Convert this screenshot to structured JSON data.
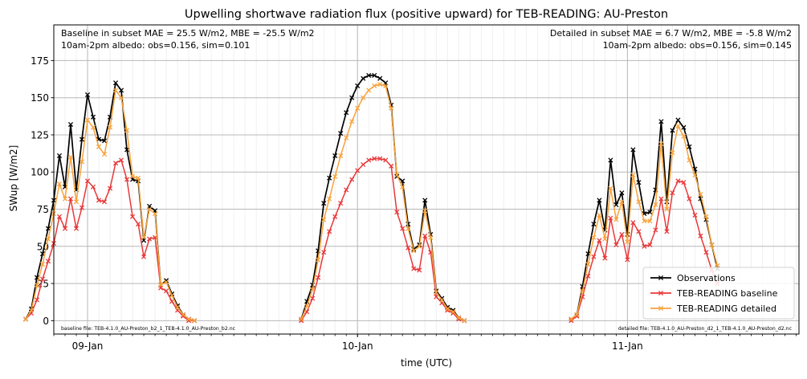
{
  "chart_data": {
    "type": "line",
    "title": "Upwelling shortwave radiation flux (positive upward) for TEB-READING: AU-Preston",
    "xlabel": "time (UTC)",
    "ylabel": "SWup [W/m2]",
    "ylim": [
      -9,
      199
    ],
    "yticks": [
      0,
      25,
      50,
      75,
      100,
      125,
      150,
      175
    ],
    "xlim": [
      -3.0,
      63.25
    ],
    "xticks": [
      {
        "label": "09-Jan",
        "hour": 0
      },
      {
        "label": "10-Jan",
        "hour": 24
      },
      {
        "label": "11-Jan",
        "hour": 48
      }
    ],
    "grid": true,
    "legend_position": "bottom-right",
    "annotations": {
      "top_left": [
        "Baseline in subset MAE = 25.5 W/m2, MBE = -25.5 W/m2",
        "10am-2pm albedo: obs=0.156, sim=0.101"
      ],
      "top_right": [
        "Detailed in subset MAE = 6.7 W/m2, MBE = -5.8 W/m2",
        "10am-2pm albedo: obs=0.156, sim=0.145"
      ],
      "bottom_left": "baseline file: TEB-4.1.0_AU-Preston_b2_1_TEB-4.1.0_AU-Preston_b2.nc",
      "bottom_right": "detailed file: TEB-4.1.0_AU-Preston_d2_1_TEB-4.1.0_AU-Preston_d2.nc"
    },
    "series": [
      {
        "name": "Observations",
        "color": "#000000",
        "segments": [
          {
            "start_hour": -5.5,
            "values": [
              1,
              8,
              29,
              45,
              62,
              81,
              111,
              90,
              132,
              88,
              122,
              152,
              137,
              122,
              121,
              137,
              160,
              155,
              115,
              95,
              94,
              54,
              77,
              74,
              24,
              27,
              18,
              10,
              4,
              1,
              0
            ]
          },
          {
            "start_hour": 19.0,
            "values": [
              1,
              13,
              24,
              47,
              79,
              96,
              111,
              126,
              140,
              150,
              158,
              163,
              165,
              165,
              163,
              160,
              145,
              97,
              94,
              65,
              48,
              51,
              81,
              58,
              20,
              15,
              9,
              7,
              2,
              0
            ]
          },
          {
            "start_hour": 43.0,
            "values": [
              1,
              4,
              23,
              45,
              65,
              81,
              61,
              108,
              78,
              86,
              58,
              115,
              93,
              72,
              73,
              88,
              134,
              80,
              128,
              135,
              130,
              117,
              102,
              82,
              68,
              51,
              35
            ]
          }
        ]
      },
      {
        "name": "TEB-READING baseline",
        "color": "#e8383a",
        "segments": [
          {
            "start_hour": -5.5,
            "values": [
              1,
              5,
              14,
              28,
              40,
              52,
              70,
              62,
              82,
              62,
              76,
              94,
              90,
              81,
              80,
              89,
              106,
              108,
              95,
              70,
              65,
              43,
              55,
              56,
              22,
              20,
              13,
              7,
              3,
              0,
              0
            ]
          },
          {
            "start_hour": 19.0,
            "values": [
              0,
              6,
              15,
              29,
              46,
              60,
              70,
              79,
              88,
              95,
              101,
              105,
              108,
              109,
              109,
              108,
              104,
              73,
              62,
              49,
              35,
              34,
              57,
              46,
              16,
              12,
              7,
              5,
              1,
              0
            ]
          },
          {
            "start_hour": 43.0,
            "values": [
              0,
              3,
              16,
              30,
              43,
              54,
              42,
              69,
              51,
              58,
              41,
              66,
              60,
              50,
              51,
              61,
              82,
              60,
              86,
              94,
              93,
              82,
              71,
              57,
              46,
              34,
              25
            ]
          }
        ]
      },
      {
        "name": "TEB-READING detailed",
        "color": "#f7a33b",
        "segments": [
          {
            "start_hour": -5.5,
            "values": [
              1,
              7,
              24,
              38,
              55,
              72,
              92,
              82,
              110,
              80,
              107,
              135,
              130,
              117,
              112,
              130,
              155,
              150,
              128,
              97,
              96,
              56,
              75,
              72,
              24,
              26,
              17,
              9,
              4,
              1,
              0
            ]
          },
          {
            "start_hour": 19.0,
            "values": [
              1,
              10,
              21,
              41,
              68,
              82,
              97,
              111,
              123,
              134,
              143,
              150,
              155,
              158,
              159,
              158,
              143,
              98,
              90,
              62,
              47,
              50,
              74,
              56,
              19,
              14,
              8,
              6,
              2,
              0
            ]
          },
          {
            "start_hour": 43.0,
            "values": [
              1,
              4,
              20,
              38,
              56,
              71,
              55,
              89,
              68,
              80,
              53,
              98,
              80,
              67,
              67,
              78,
              119,
              75,
              113,
              131,
              124,
              108,
              98,
              85,
              70,
              51,
              37
            ]
          }
        ]
      }
    ]
  }
}
